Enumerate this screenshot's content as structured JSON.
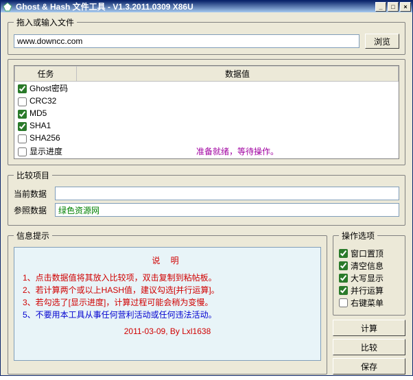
{
  "window": {
    "title": "Ghost & Hash 文件工具 - V1.3.2011.0309 X86U"
  },
  "file_section": {
    "legend": "拖入或输入文件",
    "input_value": "www.downcc.com",
    "browse_label": "浏览"
  },
  "tasks": {
    "col_task": "任务",
    "col_data": "数据值",
    "rows": [
      {
        "label": "Ghost密码",
        "checked": true,
        "value": ""
      },
      {
        "label": "CRC32",
        "checked": false,
        "value": ""
      },
      {
        "label": "MD5",
        "checked": true,
        "value": ""
      },
      {
        "label": "SHA1",
        "checked": true,
        "value": ""
      },
      {
        "label": "SHA256",
        "checked": false,
        "value": ""
      },
      {
        "label": "显示进度",
        "checked": false,
        "value": "准备就绪，等待操作。"
      }
    ]
  },
  "compare": {
    "legend": "比较项目",
    "current_label": "当前数据",
    "current_value": "",
    "ref_label": "参照数据",
    "ref_value": "绿色资源网"
  },
  "info": {
    "legend": "信息提示",
    "title": "说 明",
    "lines": [
      "1、点击数据值将其放入比较项，双击复制到粘帖板。",
      "2、若计算两个或以上HASH值，建议勾选[并行运算]。",
      "3、若勾选了[显示进度]，计算过程可能会稍为变慢。",
      "5、不要用本工具从事任何营利活动或任何违法活动。"
    ],
    "footer": "2011-03-09, By Lxl1638"
  },
  "options": {
    "legend": "操作选项",
    "items": [
      {
        "label": "窗口置顶",
        "checked": true
      },
      {
        "label": "清空信息",
        "checked": true
      },
      {
        "label": "大写显示",
        "checked": true
      },
      {
        "label": "并行运算",
        "checked": true
      },
      {
        "label": "右键菜单",
        "checked": false
      }
    ]
  },
  "actions": {
    "compute": "计算",
    "compare": "比较",
    "save": "保存"
  },
  "colors": {
    "status_text": "#a000a0",
    "info_text": "#d00000",
    "info_blue": "#0000d0",
    "ref_text": "#008000",
    "info_bg": "#e8f4f8"
  }
}
